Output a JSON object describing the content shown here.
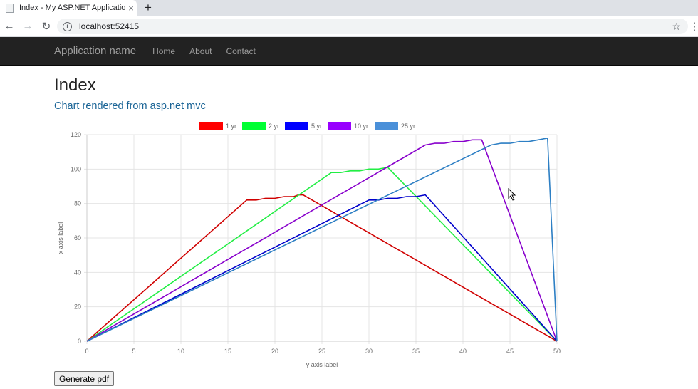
{
  "browser": {
    "tab_title": "Index - My ASP.NET Application",
    "tab_close": "×",
    "new_tab": "+",
    "url": "localhost:52415",
    "back": "←",
    "forward": "→",
    "reload": "↻",
    "info": "i",
    "star": "☆",
    "menu": "⋮"
  },
  "nav": {
    "brand": "Application name",
    "links": [
      "Home",
      "About",
      "Contact"
    ]
  },
  "page": {
    "title": "Index",
    "subtitle": "Chart rendered from asp.net mvc",
    "button": "Generate pdf"
  },
  "chart_data": {
    "type": "line",
    "xlabel": "y axis label",
    "ylabel": "x axis label",
    "xlim": [
      0,
      50
    ],
    "ylim": [
      0,
      120
    ],
    "x_ticks": [
      0,
      5,
      10,
      15,
      20,
      25,
      30,
      35,
      40,
      45,
      50
    ],
    "y_ticks": [
      0,
      20,
      40,
      60,
      80,
      100,
      120
    ],
    "grid": true,
    "legend_position": "top",
    "series": [
      {
        "name": "1 yr",
        "color": "#ff0000",
        "stroke": "#d00000",
        "points": [
          [
            0,
            0
          ],
          [
            17,
            82
          ],
          [
            18,
            82
          ],
          [
            19,
            83
          ],
          [
            20,
            83
          ],
          [
            21,
            84
          ],
          [
            22,
            84
          ],
          [
            22.5,
            85
          ],
          [
            23,
            85
          ],
          [
            50,
            0
          ]
        ]
      },
      {
        "name": "2 yr",
        "color": "#00ff33",
        "stroke": "#22ee44",
        "points": [
          [
            0,
            0
          ],
          [
            26,
            98
          ],
          [
            27,
            98
          ],
          [
            28,
            99
          ],
          [
            29,
            99
          ],
          [
            30,
            100
          ],
          [
            31,
            100
          ],
          [
            32,
            101
          ],
          [
            50,
            0
          ]
        ]
      },
      {
        "name": "5 yr",
        "color": "#0000ff",
        "stroke": "#0000cc",
        "points": [
          [
            0,
            0
          ],
          [
            30,
            82
          ],
          [
            31,
            82
          ],
          [
            32,
            83
          ],
          [
            33,
            83
          ],
          [
            34,
            84
          ],
          [
            35,
            84
          ],
          [
            36,
            85
          ],
          [
            50,
            0
          ]
        ]
      },
      {
        "name": "10 yr",
        "color": "#9900ff",
        "stroke": "#8800cc",
        "points": [
          [
            0,
            0
          ],
          [
            36,
            114
          ],
          [
            37,
            115
          ],
          [
            38,
            115
          ],
          [
            39,
            116
          ],
          [
            40,
            116
          ],
          [
            41,
            117
          ],
          [
            42,
            117
          ],
          [
            50,
            0
          ]
        ]
      },
      {
        "name": "25 yr",
        "color": "#4a90d9",
        "stroke": "#2d7fc4",
        "points": [
          [
            0,
            0
          ],
          [
            43,
            114
          ],
          [
            44,
            115
          ],
          [
            45,
            115
          ],
          [
            46,
            116
          ],
          [
            47,
            116
          ],
          [
            48,
            117
          ],
          [
            49,
            118
          ],
          [
            50,
            0
          ]
        ]
      }
    ]
  }
}
